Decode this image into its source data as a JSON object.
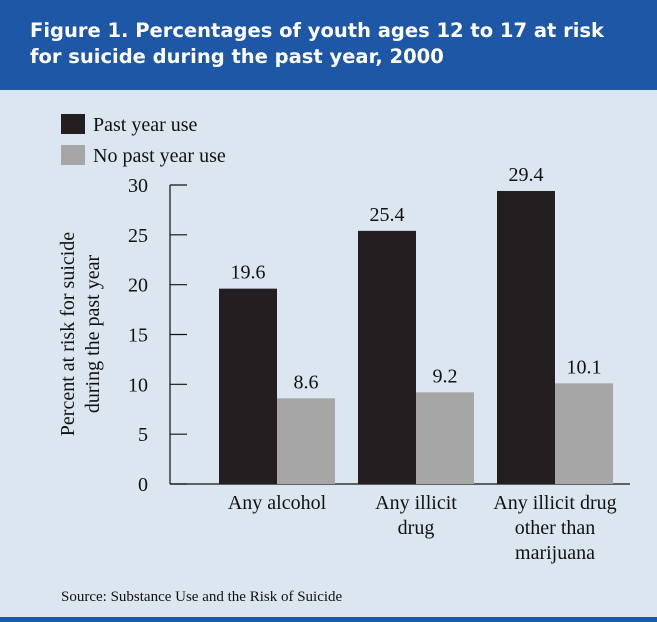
{
  "figure": {
    "title_line1": "Figure 1. Percentages of youth ages 12 to 17 at risk",
    "title_line2": "for suicide during the past year, 2000",
    "source": "Source: Substance Use and the Risk of Suicide"
  },
  "colors": {
    "header": "#1e57a6",
    "background": "#dce6f1",
    "past_year_use": "#231f20",
    "no_past_year_use": "#a6a6a6"
  },
  "chart_data": {
    "type": "bar",
    "title": "Figure 1. Percentages of youth ages 12 to 17 at risk for suicide during the past year, 2000",
    "ylabel_line1": "Percent at risk for suicide",
    "ylabel_line2": "during the past year",
    "xlabel": "",
    "ylim": [
      0,
      30
    ],
    "yticks": [
      "0",
      "5",
      "10",
      "15",
      "20",
      "25",
      "30"
    ],
    "grid": false,
    "legend_position": "top-left",
    "categories": [
      {
        "lines": [
          "Any alcohol"
        ]
      },
      {
        "lines": [
          "Any illicit",
          "drug"
        ]
      },
      {
        "lines": [
          "Any illicit drug",
          "other than",
          "marijuana"
        ]
      }
    ],
    "series": [
      {
        "name": "Past year use",
        "color": "#231f20",
        "values": [
          19.6,
          25.4,
          29.4
        ],
        "labels": [
          "19.6",
          "25.4",
          "29.4"
        ]
      },
      {
        "name": "No past year use",
        "color": "#a6a6a6",
        "values": [
          8.6,
          9.2,
          10.1
        ],
        "labels": [
          "8.6",
          "9.2",
          "10.1"
        ]
      }
    ]
  }
}
